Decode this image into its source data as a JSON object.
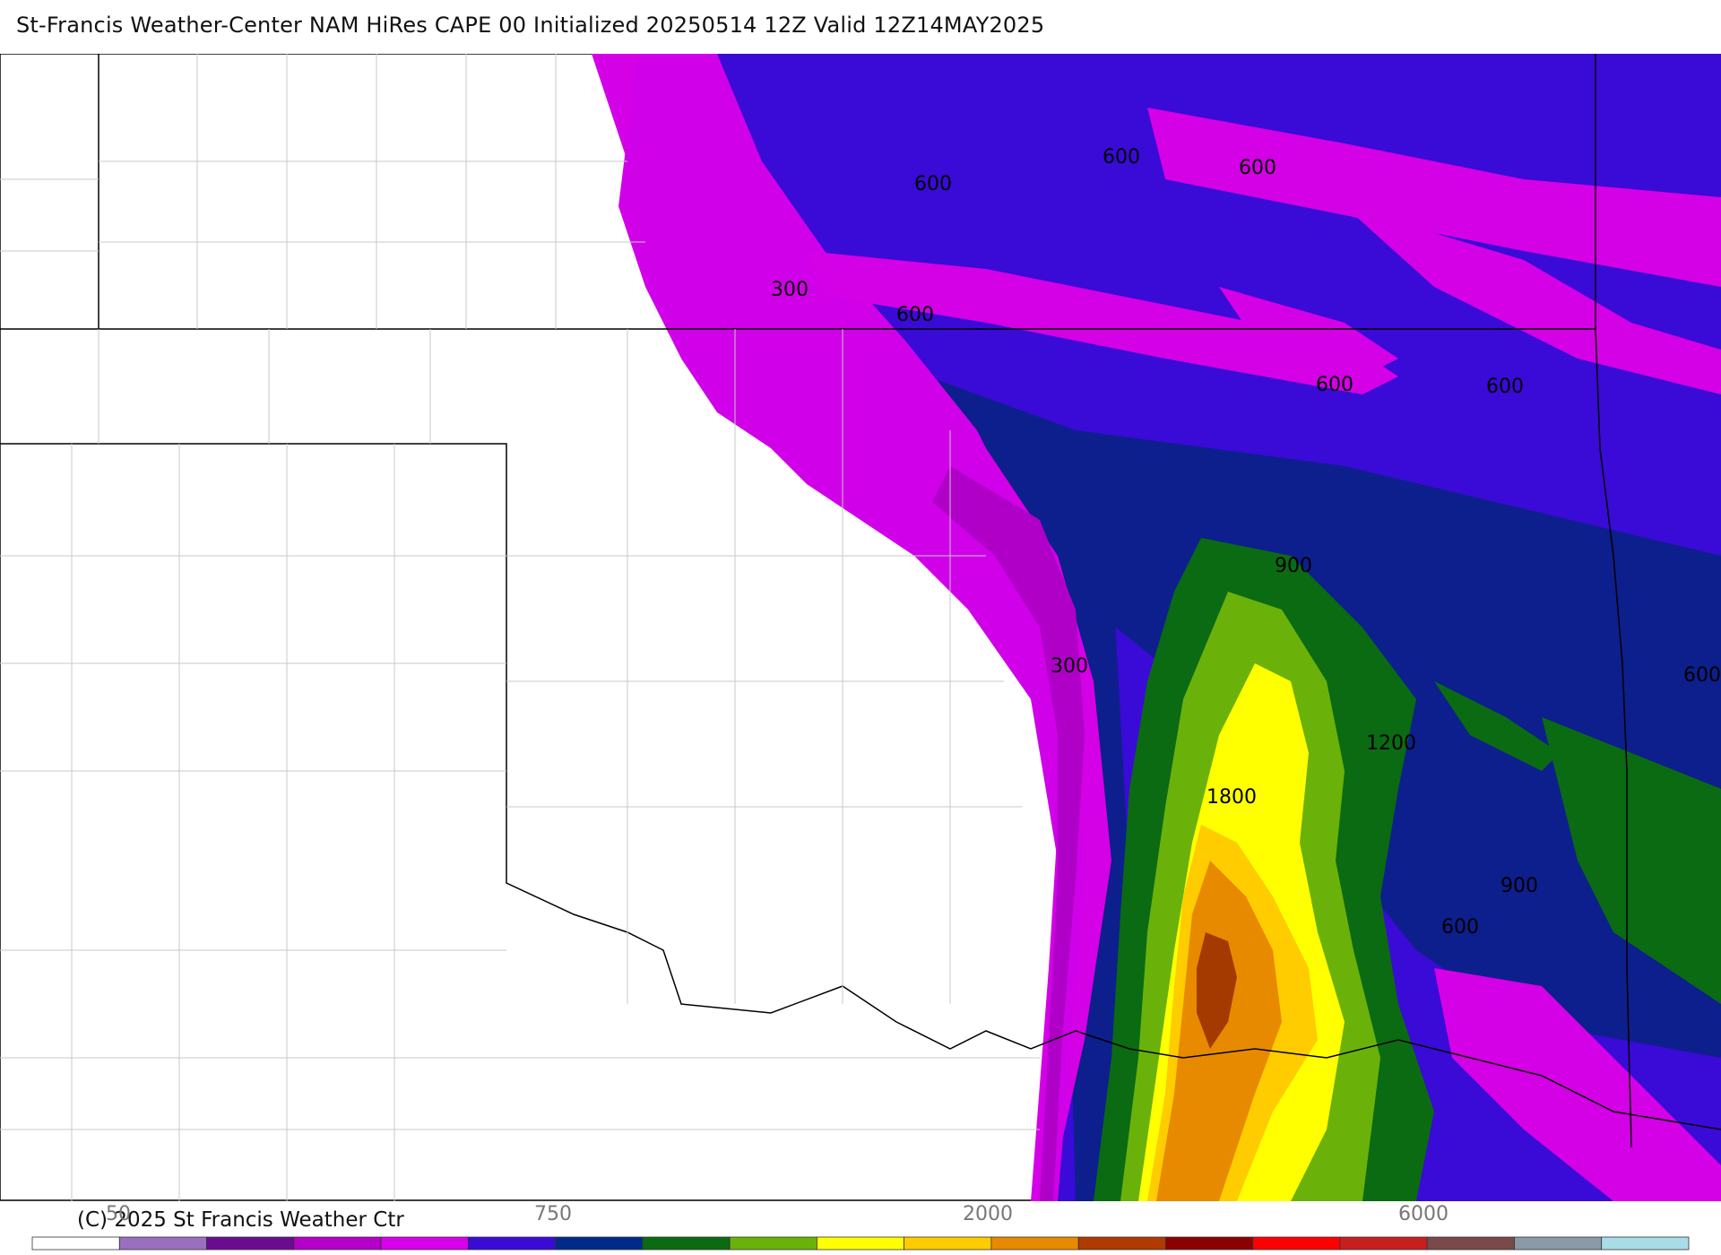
{
  "title": "St-Francis Weather-Center NAM HiRes CAPE  00 Initialized 20250514 12Z Valid 12Z14MAY2025",
  "copyright": "(C) 2025 St Francis Weather Ctr",
  "contour_labels": [
    "600",
    "600",
    "600",
    "300",
    "600",
    "600",
    "600",
    "900",
    "300",
    "600",
    "1200",
    "1800",
    "900",
    "600"
  ],
  "colorbar": {
    "tick_labels": [
      "50",
      "750",
      "2000",
      "6000"
    ],
    "colors": [
      "#ffffff",
      "#9b6fc0",
      "#6a0c8f",
      "#b400c8",
      "#d800ec",
      "#3a0ad6",
      "#002a8a",
      "#0a6b12",
      "#6ab20a",
      "#ffff00",
      "#ffcc00",
      "#e88a00",
      "#b03a00",
      "#8b0000",
      "#ff0000",
      "#c81e1e",
      "#7a4a4a",
      "#8a9aa6",
      "#a8dde8"
    ]
  },
  "map_colors": {
    "blue": "#3a0ad6",
    "navy": "#0d1f8c",
    "purple": "#d400e6",
    "violet": "#b000c8",
    "green": "#0a6b12",
    "lime": "#6ab20a",
    "yellow": "#ffff00",
    "gold": "#ffcc00",
    "orange": "#e88a00",
    "rust": "#a43a00"
  }
}
